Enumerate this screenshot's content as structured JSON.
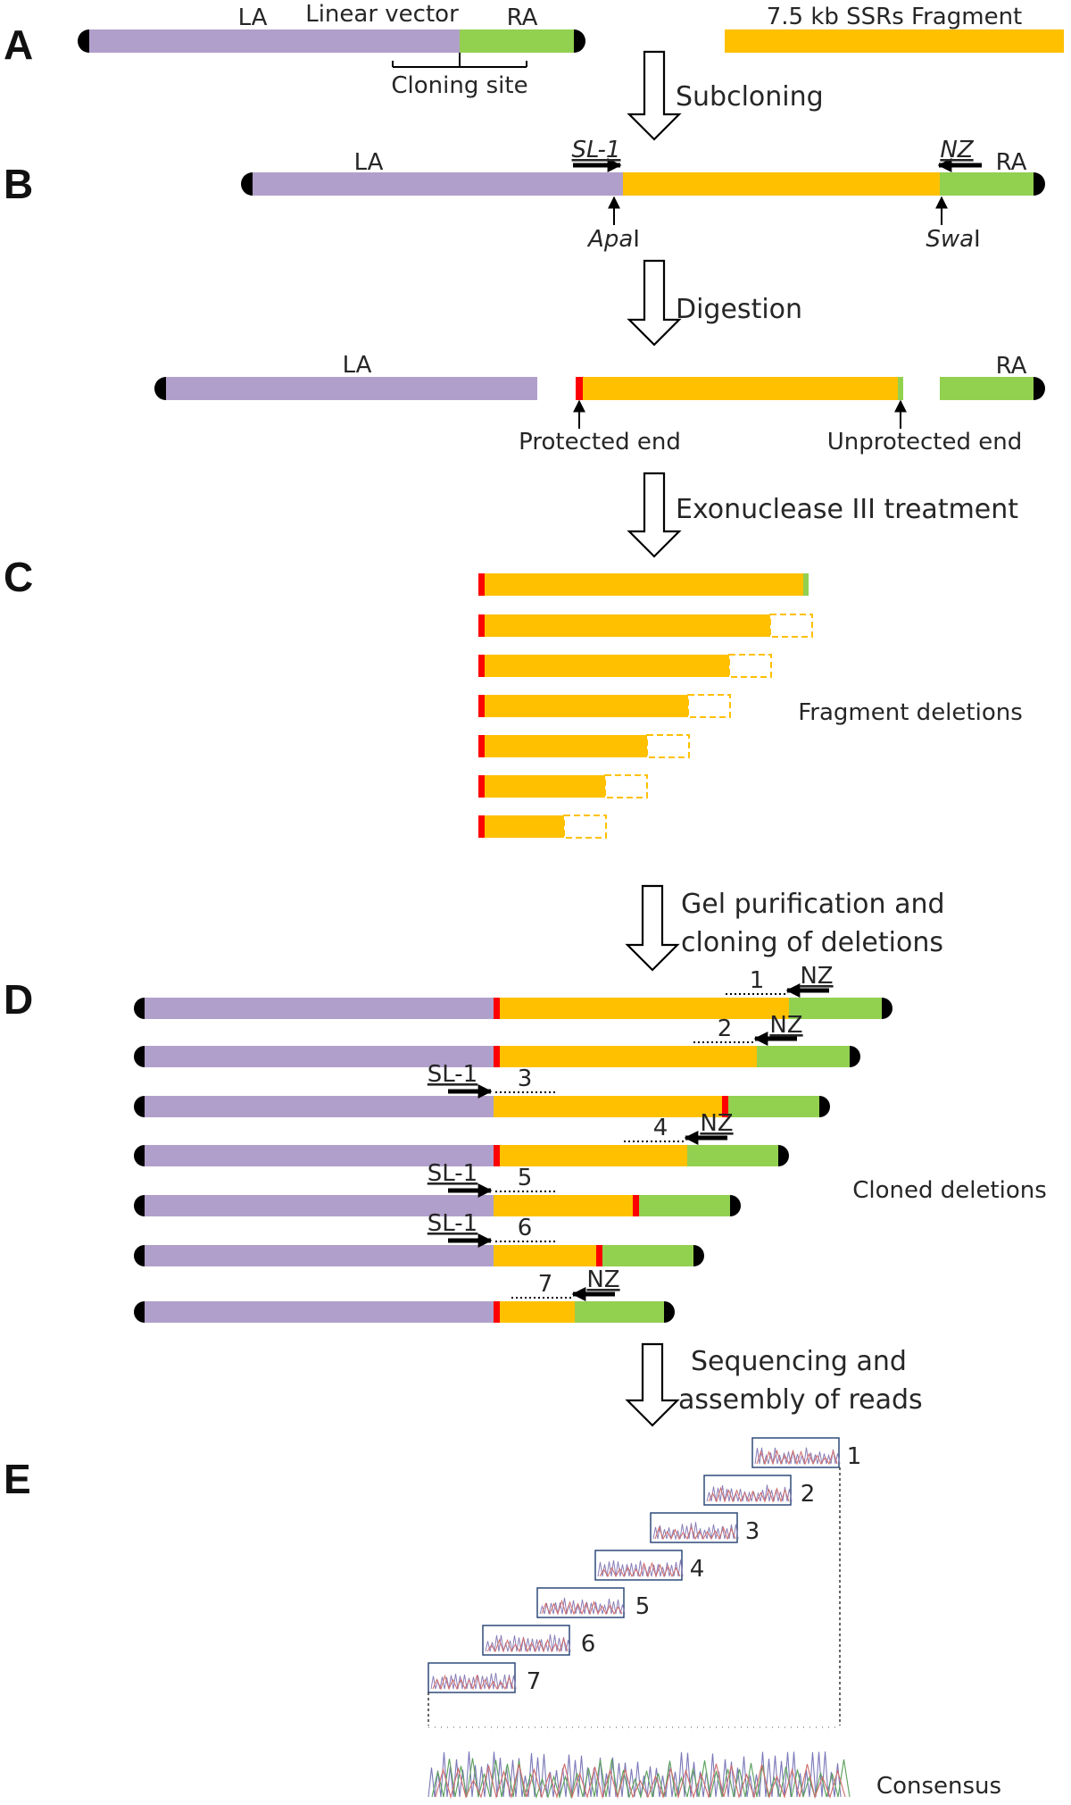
{
  "colors": {
    "vector": "#b19fcb",
    "fragment": "#ffc000",
    "right_arm": "#92d050",
    "protected_cap": "#ff0000",
    "end_cap": "#000000",
    "arrow": "#000000"
  },
  "panels": [
    "A",
    "B",
    "C",
    "D",
    "E"
  ],
  "panel_a": {
    "left_arm": "LA",
    "vector_title": "Linear vector",
    "right_arm": "RA",
    "cloning_site": "Cloning site",
    "fragment_title": "7.5 kb SSRs Fragment"
  },
  "steps": {
    "subcloning": "Subcloning",
    "digestion": "Digestion",
    "exo": "Exonuclease III treatment",
    "gel_line1": "Gel purification and",
    "gel_line2": "cloning of deletions",
    "seq_line1": "Sequencing and",
    "seq_line2": "assembly of reads"
  },
  "panel_b": {
    "left_arm": "LA",
    "right_arm": "RA",
    "primer_forward": "SL-1",
    "primer_reverse": "NZ",
    "site1_italic": "Apa",
    "site1_roman": "I",
    "site2_italic": "Swa",
    "site2_roman": "I"
  },
  "digestion": {
    "left_arm": "LA",
    "right_arm": "RA",
    "protected_end": "Protected end",
    "unprotected_end": "Unprotected end"
  },
  "panel_c": {
    "label": "Fragment deletions",
    "deletion_count": 7
  },
  "panel_d": {
    "label": "Cloned deletions",
    "clones": [
      {
        "number": "1",
        "primer": "NZ"
      },
      {
        "number": "2",
        "primer": "NZ"
      },
      {
        "number": "3",
        "primer": "SL-1"
      },
      {
        "number": "4",
        "primer": "NZ"
      },
      {
        "number": "5",
        "primer": "SL-1"
      },
      {
        "number": "6",
        "primer": "SL-1"
      },
      {
        "number": "7",
        "primer": "NZ"
      }
    ]
  },
  "panel_e": {
    "reads": [
      "1",
      "2",
      "3",
      "4",
      "5",
      "6",
      "7"
    ],
    "consensus": "Consensus"
  }
}
